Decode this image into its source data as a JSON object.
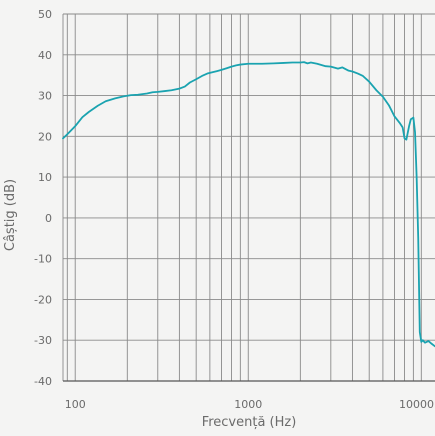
{
  "chart_data": {
    "type": "line",
    "title": "",
    "xlabel": "Frecvență (Hz)",
    "ylabel": "Câștig (dB)",
    "x_scale": "log",
    "xlim": [
      85,
      12000
    ],
    "ylim": [
      -40,
      50
    ],
    "x_tick_labels": [
      {
        "value": 100,
        "label": "100"
      },
      {
        "value": 1000,
        "label": "1000"
      },
      {
        "value": 10000,
        "label": "10000"
      }
    ],
    "y_tick_labels": [
      {
        "value": 50,
        "label": "50"
      },
      {
        "value": 40,
        "label": "40"
      },
      {
        "value": 30,
        "label": "30"
      },
      {
        "value": 20,
        "label": "20"
      },
      {
        "value": 10,
        "label": "10"
      },
      {
        "value": 0,
        "label": "0"
      },
      {
        "value": -10,
        "label": "-10"
      },
      {
        "value": -20,
        "label": "-20"
      },
      {
        "value": -30,
        "label": "-30"
      },
      {
        "value": -40,
        "label": "-40"
      }
    ],
    "grid": true,
    "line_color": "#1aa3b0",
    "grid_color": "#8a8a8a",
    "axis_color": "#555555",
    "text_color": "#6b6b6b",
    "background": "#f4f4f3",
    "series": [
      {
        "x": [
          85,
          90,
          100,
          110,
          120,
          135,
          150,
          170,
          190,
          210,
          230,
          260,
          280,
          300,
          330,
          360,
          400,
          430,
          460,
          500,
          540,
          580,
          620,
          660,
          700,
          750,
          800,
          850,
          900,
          1000,
          1200,
          1400,
          1600,
          1800,
          2000,
          2100,
          2200,
          2300,
          2500,
          2800,
          3000,
          3300,
          3500,
          3800,
          4000,
          4300,
          4600,
          5000,
          5500,
          6000,
          6500,
          7000,
          7500,
          7800,
          8000,
          8200,
          8500,
          8700,
          9000,
          9200,
          9400,
          9600,
          9800,
          10000,
          10200,
          10500,
          11000,
          11500,
          12000
        ],
        "y": [
          19.5,
          20.5,
          22.5,
          24.7,
          26,
          27.5,
          28.6,
          29.3,
          29.8,
          30.1,
          30.2,
          30.5,
          30.8,
          30.9,
          31.1,
          31.3,
          31.7,
          32.2,
          33.2,
          34,
          34.8,
          35.4,
          35.7,
          36,
          36.3,
          36.7,
          37.1,
          37.4,
          37.6,
          37.8,
          37.8,
          37.9,
          38,
          38.1,
          38.1,
          38.2,
          37.9,
          38.1,
          37.8,
          37.2,
          37.1,
          36.6,
          36.9,
          36.1,
          35.9,
          35.4,
          34.8,
          33.4,
          31.3,
          29.7,
          27.6,
          24.9,
          23.3,
          22.2,
          19.5,
          19.2,
          22.5,
          24.2,
          24.6,
          21,
          10,
          -5,
          -28,
          -30.4,
          -30,
          -30.6,
          -30.2,
          -30.9,
          -31.5
        ]
      }
    ]
  }
}
